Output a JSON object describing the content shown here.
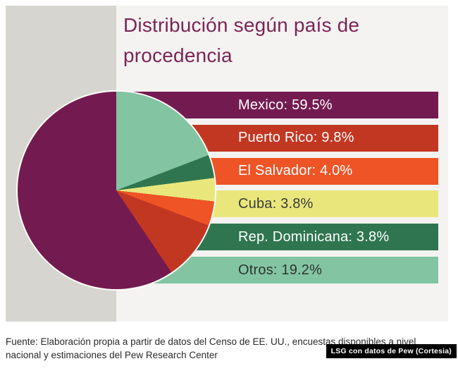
{
  "title": "Distribución según país de procedencia",
  "chart_data": {
    "type": "pie",
    "title": "Distribución según país de procedencia",
    "categories": [
      "Mexico",
      "Puerto Rico",
      "El Salvador",
      "Cuba",
      "Rep. Dominicana",
      "Otros"
    ],
    "values": [
      59.5,
      9.8,
      4.0,
      3.8,
      3.8,
      19.2
    ],
    "unit": "%",
    "colors": [
      "#731B51",
      "#C23722",
      "#EE5426",
      "#E9E77C",
      "#2F7650",
      "#83C5A3"
    ],
    "legend_position": "right",
    "draw_direction": "counterclockwise-from-top"
  },
  "legend": {
    "items": [
      {
        "label": "Mexico: 59.5%",
        "color": "#731B51",
        "text_color": "#FFFFFF"
      },
      {
        "label": "Puerto Rico: 9.8%",
        "color": "#C23722",
        "text_color": "#FFFFFF"
      },
      {
        "label": "El Salvador: 4.0%",
        "color": "#EE5426",
        "text_color": "#FFFFFF"
      },
      {
        "label": "Cuba: 3.8%",
        "color": "#E9E77C",
        "text_color": "#3A3A3A"
      },
      {
        "label": "Rep. Dominicana: 3.8%",
        "color": "#2F7650",
        "text_color": "#FFFFFF"
      },
      {
        "label": "Otros: 19.2%",
        "color": "#83C5A3",
        "text_color": "#30342F"
      }
    ]
  },
  "footer": {
    "source": "Fuente: Elaboración propia a partir de datos del Censo de EE. UU., encuestas disponibles a nivel nacional y estimaciones del Pew Research Center",
    "credit": "LSG con datos de Pew (Cortesia)"
  },
  "colors": {
    "page_bg": "#FFFFFF",
    "panel_bg": "#F4F3F1",
    "band_bg": "#D7D5D0",
    "title": "#7C2557",
    "source_text": "#2A2A2A",
    "credit_bg": "#000000",
    "credit_text": "#FFFFFF",
    "pie_outline": "#FFFDF7"
  }
}
